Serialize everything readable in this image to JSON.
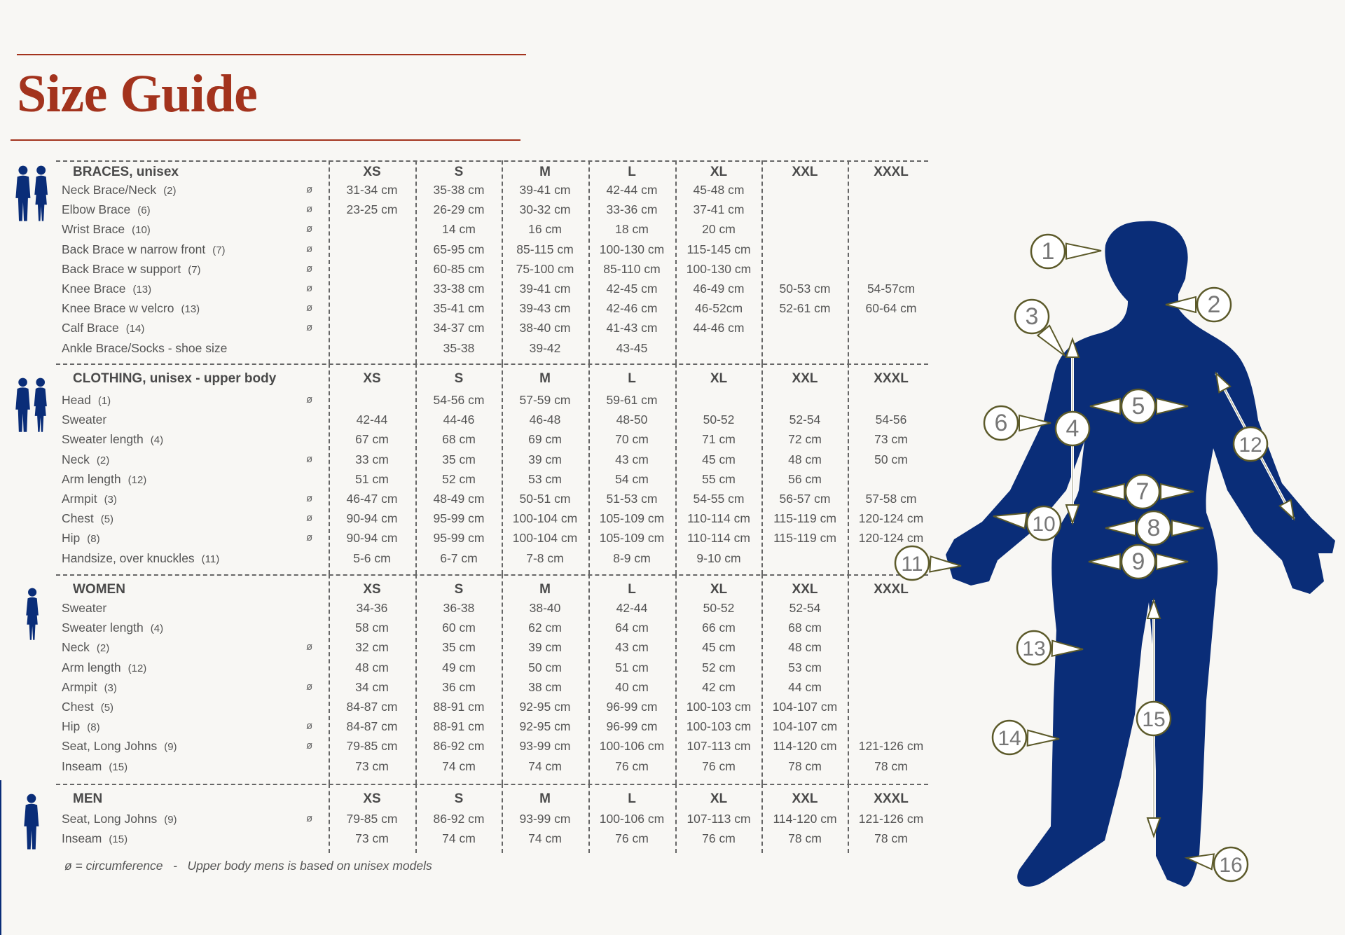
{
  "title": "Size Guide",
  "circumference_symbol": "ø",
  "footnote": {
    "part1": "ø = circumference",
    "separator": "-",
    "part2": "Upper body mens is based on unisex models"
  },
  "colors": {
    "accent": "#a3331d",
    "figure": "#0a2d78",
    "callout_border": "#5c5a2a",
    "text": "#555555"
  },
  "sections": [
    {
      "title": "BRACES, unisex",
      "icon": "couple-silhouette-icon",
      "sizes": [
        "XS",
        "S",
        "M",
        "L",
        "XL",
        "XXL",
        "XXXL"
      ],
      "rows": [
        {
          "label": "Neck Brace/Neck",
          "ref": "(2)",
          "circ": true,
          "values": [
            "31-34 cm",
            "35-38 cm",
            "39-41 cm",
            "42-44 cm",
            "45-48 cm",
            "",
            ""
          ]
        },
        {
          "label": "Elbow Brace",
          "ref": "(6)",
          "circ": true,
          "values": [
            "23-25 cm",
            "26-29 cm",
            "30-32 cm",
            "33-36 cm",
            "37-41 cm",
            "",
            ""
          ]
        },
        {
          "label": "Wrist Brace",
          "ref": "(10)",
          "circ": true,
          "values": [
            "",
            "14 cm",
            "16 cm",
            "18 cm",
            "20 cm",
            "",
            ""
          ]
        },
        {
          "label": "Back Brace w narrow front",
          "ref": "(7)",
          "circ": true,
          "values": [
            "",
            "65-95 cm",
            "85-115 cm",
            "100-130 cm",
            "115-145 cm",
            "",
            ""
          ]
        },
        {
          "label": "Back Brace w support",
          "ref": "(7)",
          "circ": true,
          "values": [
            "",
            "60-85 cm",
            "75-100 cm",
            "85-110 cm",
            "100-130 cm",
            "",
            ""
          ]
        },
        {
          "label": "Knee Brace",
          "ref": "(13)",
          "circ": true,
          "values": [
            "",
            "33-38 cm",
            "39-41 cm",
            "42-45 cm",
            "46-49 cm",
            "50-53 cm",
            "54-57cm"
          ]
        },
        {
          "label": "Knee Brace w velcro",
          "ref": "(13)",
          "circ": true,
          "values": [
            "",
            "35-41 cm",
            "39-43 cm",
            "42-46 cm",
            "46-52cm",
            "52-61 cm",
            "60-64 cm"
          ]
        },
        {
          "label": "Calf Brace",
          "ref": "(14)",
          "circ": true,
          "values": [
            "",
            "34-37 cm",
            "38-40 cm",
            "41-43 cm",
            "44-46 cm",
            "",
            ""
          ]
        },
        {
          "label": "Ankle Brace/Socks - shoe size",
          "ref": "",
          "circ": false,
          "values": [
            "",
            "35-38",
            "39-42",
            "43-45",
            "",
            "",
            ""
          ]
        }
      ]
    },
    {
      "title": "CLOTHING, unisex - upper body",
      "icon": "couple-silhouette-icon",
      "sizes": [
        "XS",
        "S",
        "M",
        "L",
        "XL",
        "XXL",
        "XXXL"
      ],
      "rows": [
        {
          "label": "Head",
          "ref": "(1)",
          "circ": true,
          "values": [
            "",
            "54-56 cm",
            "57-59 cm",
            "59-61 cm",
            "",
            "",
            ""
          ]
        },
        {
          "label": "Sweater",
          "ref": "",
          "circ": false,
          "values": [
            "42-44",
            "44-46",
            "46-48",
            "48-50",
            "50-52",
            "52-54",
            "54-56"
          ]
        },
        {
          "label": "Sweater length",
          "ref": "(4)",
          "circ": false,
          "values": [
            "67 cm",
            "68 cm",
            "69 cm",
            "70 cm",
            "71 cm",
            "72 cm",
            "73 cm"
          ]
        },
        {
          "label": "Neck",
          "ref": "(2)",
          "circ": true,
          "values": [
            "33 cm",
            "35 cm",
            "39 cm",
            "43 cm",
            "45 cm",
            "48 cm",
            "50 cm"
          ]
        },
        {
          "label": "Arm length",
          "ref": "(12)",
          "circ": false,
          "values": [
            "51 cm",
            "52 cm",
            "53 cm",
            "54 cm",
            "55 cm",
            "56 cm",
            ""
          ]
        },
        {
          "label": "Armpit",
          "ref": "(3)",
          "circ": true,
          "values": [
            "46-47 cm",
            "48-49 cm",
            "50-51 cm",
            "51-53 cm",
            "54-55 cm",
            "56-57 cm",
            "57-58 cm"
          ]
        },
        {
          "label": "Chest",
          "ref": "(5)",
          "circ": true,
          "values": [
            "90-94 cm",
            "95-99 cm",
            "100-104 cm",
            "105-109 cm",
            "110-114 cm",
            "115-119 cm",
            "120-124 cm"
          ]
        },
        {
          "label": "Hip",
          "ref": "(8)",
          "circ": true,
          "values": [
            "90-94 cm",
            "95-99 cm",
            "100-104 cm",
            "105-109 cm",
            "110-114 cm",
            "115-119 cm",
            "120-124 cm"
          ]
        },
        {
          "label": "Handsize, over knuckles",
          "ref": "(11)",
          "circ": false,
          "values": [
            "5-6 cm",
            "6-7 cm",
            "7-8 cm",
            "8-9 cm",
            "9-10 cm",
            "",
            ""
          ]
        }
      ]
    },
    {
      "title": "WOMEN",
      "icon": "woman-silhouette-icon",
      "sizes": [
        "XS",
        "S",
        "M",
        "L",
        "XL",
        "XXL",
        "XXXL"
      ],
      "rows": [
        {
          "label": "Sweater",
          "ref": "",
          "circ": false,
          "values": [
            "34-36",
            "36-38",
            "38-40",
            "42-44",
            "50-52",
            "52-54",
            ""
          ]
        },
        {
          "label": "Sweater length",
          "ref": "(4)",
          "circ": false,
          "values": [
            "58 cm",
            "60 cm",
            "62 cm",
            "64 cm",
            "66 cm",
            "68 cm",
            ""
          ]
        },
        {
          "label": "Neck",
          "ref": "(2)",
          "circ": true,
          "values": [
            "32 cm",
            "35 cm",
            "39 cm",
            "43 cm",
            "45 cm",
            "48 cm",
            ""
          ]
        },
        {
          "label": "Arm length",
          "ref": "(12)",
          "circ": false,
          "values": [
            "48 cm",
            "49 cm",
            "50 cm",
            "51 cm",
            "52 cm",
            "53 cm",
            ""
          ]
        },
        {
          "label": "Armpit",
          "ref": "(3)",
          "circ": true,
          "values": [
            "34 cm",
            "36 cm",
            "38 cm",
            "40 cm",
            "42 cm",
            "44 cm",
            ""
          ]
        },
        {
          "label": "Chest",
          "ref": "(5)",
          "circ": false,
          "values": [
            "84-87 cm",
            "88-91 cm",
            "92-95 cm",
            "96-99 cm",
            "100-103 cm",
            "104-107 cm",
            ""
          ]
        },
        {
          "label": "Hip",
          "ref": "(8)",
          "circ": true,
          "values": [
            "84-87 cm",
            "88-91 cm",
            "92-95 cm",
            "96-99 cm",
            "100-103 cm",
            "104-107 cm",
            ""
          ]
        },
        {
          "label": "Seat, Long Johns",
          "ref": "(9)",
          "circ": true,
          "values": [
            "79-85 cm",
            "86-92 cm",
            "93-99 cm",
            "100-106 cm",
            "107-113 cm",
            "114-120 cm",
            "121-126 cm"
          ]
        },
        {
          "label": "Inseam",
          "ref": "(15)",
          "circ": false,
          "values": [
            "73 cm",
            "74 cm",
            "74 cm",
            "76 cm",
            "76 cm",
            "78 cm",
            "78 cm"
          ]
        }
      ]
    },
    {
      "title": "MEN",
      "icon": "man-silhouette-icon",
      "sizes": [
        "XS",
        "S",
        "M",
        "L",
        "XL",
        "XXL",
        "XXXL"
      ],
      "rows": [
        {
          "label": "Seat, Long Johns",
          "ref": "(9)",
          "circ": true,
          "values": [
            "79-85 cm",
            "86-92 cm",
            "93-99 cm",
            "100-106 cm",
            "107-113 cm",
            "114-120 cm",
            "121-126 cm"
          ]
        },
        {
          "label": "Inseam",
          "ref": "(15)",
          "circ": false,
          "values": [
            "73 cm",
            "74 cm",
            "74 cm",
            "76 cm",
            "76 cm",
            "78 cm",
            "78 cm"
          ]
        }
      ]
    }
  ],
  "body_figure": {
    "icon": "body-silhouette-measurement-diagram",
    "callouts": [
      "1",
      "2",
      "3",
      "4",
      "5",
      "6",
      "7",
      "8",
      "9",
      "10",
      "11",
      "12",
      "13",
      "14",
      "15",
      "16"
    ]
  }
}
